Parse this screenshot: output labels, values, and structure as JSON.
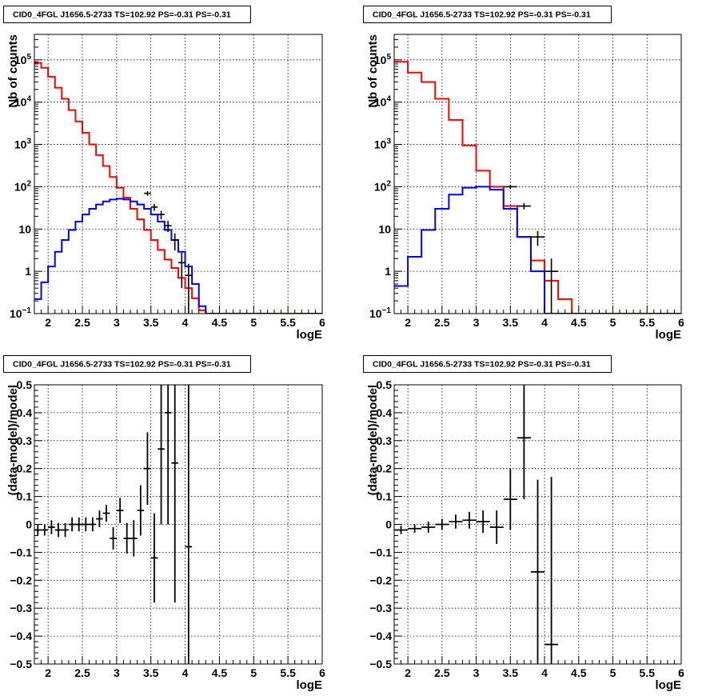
{
  "chart_data": [
    {
      "type": "histogram",
      "title": "CID0_4FGL J1656.5-2733 TS=102.92 PS=-0.31 PS=-0.31",
      "xlabel": "logE",
      "ylabel": "Nb of counts",
      "log_y": true,
      "grid": true,
      "xlim": [
        1.8,
        6.0
      ],
      "ylim": [
        0.1,
        400000
      ],
      "x_ticks": [
        "2",
        "2.5",
        "3",
        "3.5",
        "4",
        "4.5",
        "5",
        "5.5",
        "6"
      ],
      "y_ticks": [
        {
          "base": "10",
          "exp": "-1",
          "value": 0.1
        },
        {
          "base": "1",
          "exp": "",
          "value": 1
        },
        {
          "base": "10",
          "exp": "",
          "value": 10
        },
        {
          "base": "10",
          "exp": "2",
          "value": 100
        },
        {
          "base": "10",
          "exp": "3",
          "value": 1000
        },
        {
          "base": "10",
          "exp": "4",
          "value": 10000
        },
        {
          "base": "10",
          "exp": "5",
          "value": 100000
        }
      ],
      "bin_edges": [
        1.8,
        1.9,
        2.0,
        2.1,
        2.2,
        2.3,
        2.4,
        2.5,
        2.6,
        2.7,
        2.8,
        2.9,
        3.0,
        3.1,
        3.2,
        3.3,
        3.4,
        3.5,
        3.6,
        3.7,
        3.8,
        3.9,
        4.0,
        4.1,
        4.2,
        4.3,
        4.4,
        4.5,
        4.6,
        4.7,
        4.8,
        4.9,
        5.0,
        5.1,
        5.2,
        5.3,
        5.4,
        5.5,
        5.6,
        5.7,
        5.8,
        5.9,
        6.0
      ],
      "series": [
        {
          "role": "total_model",
          "color": "#ff0000",
          "values": [
            85000,
            65000,
            40000,
            22000,
            12000,
            6500,
            3500,
            1900,
            1000,
            560,
            310,
            170,
            95,
            55,
            30,
            17,
            9.5,
            5.5,
            3.2,
            1.9,
            1.2,
            0.7,
            0.4,
            0.23,
            0.12,
            0.1,
            0.1,
            0.1,
            0.1,
            0.1,
            0.1,
            0.1,
            0.1,
            0.1,
            0.1,
            0.1,
            0.1,
            0.1,
            0.1,
            0.1,
            0.1,
            0.1
          ]
        },
        {
          "role": "source_model",
          "color": "#0000ff",
          "values": [
            0.22,
            0.55,
            1.3,
            2.9,
            5.5,
            9.5,
            15,
            22,
            30,
            38,
            45,
            50,
            52,
            50,
            45,
            38,
            30,
            22,
            15,
            9.5,
            5.5,
            2.9,
            1.3,
            0.5,
            0.15,
            0.1,
            0.1,
            0.1,
            0.1,
            0.1,
            0.1,
            0.1,
            0.1,
            0.1,
            0.1,
            0.1,
            0.1,
            0.1,
            0.1,
            0.1,
            0.1,
            0.1
          ]
        },
        {
          "role": "data",
          "color": "#000000",
          "points": [
            {
              "x": 3.45,
              "y": 70,
              "err": 9
            },
            {
              "x": 3.55,
              "y": 33,
              "err": 6
            },
            {
              "x": 3.65,
              "y": 22,
              "err": 5
            },
            {
              "x": 3.75,
              "y": 12,
              "err": 3.5
            },
            {
              "x": 3.85,
              "y": 5.5,
              "err": 2.4
            },
            {
              "x": 3.95,
              "y": 1.6,
              "err": 1.2
            },
            {
              "x": 4.05,
              "y": 0.8,
              "err": 0.7
            }
          ]
        }
      ]
    },
    {
      "type": "histogram",
      "title": "CID0_4FGL J1656.5-2733 TS=102.92 PS=-0.31 PS=-0.31",
      "xlabel": "logE",
      "ylabel": "Nb of counts",
      "log_y": true,
      "grid": true,
      "xlim": [
        1.8,
        6.0
      ],
      "ylim": [
        0.1,
        400000
      ],
      "x_ticks": [
        "2",
        "2.5",
        "3",
        "3.5",
        "4",
        "4.5",
        "5",
        "5.5",
        "6"
      ],
      "y_ticks": [
        {
          "base": "10",
          "exp": "-1",
          "value": 0.1
        },
        {
          "base": "1",
          "exp": "",
          "value": 1
        },
        {
          "base": "10",
          "exp": "",
          "value": 10
        },
        {
          "base": "10",
          "exp": "2",
          "value": 100
        },
        {
          "base": "10",
          "exp": "3",
          "value": 1000
        },
        {
          "base": "10",
          "exp": "4",
          "value": 10000
        },
        {
          "base": "10",
          "exp": "5",
          "value": 100000
        }
      ],
      "bin_edges": [
        1.8,
        2.0,
        2.2,
        2.4,
        2.6,
        2.8,
        3.0,
        3.2,
        3.4,
        3.6,
        3.8,
        4.0,
        4.2,
        4.4,
        4.6,
        4.8,
        5.0,
        5.2,
        5.4,
        5.6,
        5.8,
        6.0
      ],
      "series": [
        {
          "role": "total_model",
          "color": "#ff0000",
          "values": [
            90000,
            50000,
            30000,
            12000,
            3800,
            950,
            240,
            100,
            35,
            6.5,
            1.8,
            0.6,
            0.22,
            0.1,
            0.1,
            0.1,
            0.1,
            0.1,
            0.1,
            0.1,
            0.1
          ]
        },
        {
          "role": "source_model",
          "color": "#0000ff",
          "values": [
            0.45,
            2.2,
            9.5,
            30,
            65,
            95,
            100,
            85,
            30,
            6.5,
            1.0,
            0.1,
            0.1,
            0.1,
            0.1,
            0.1,
            0.1,
            0.1,
            0.1,
            0.1,
            0.1
          ]
        },
        {
          "role": "data",
          "color": "#000000",
          "points": [
            {
              "x": 3.5,
              "y": 100,
              "err": 10
            },
            {
              "x": 3.7,
              "y": 35,
              "err": 6
            },
            {
              "x": 3.9,
              "y": 6.5,
              "err": 2.5
            },
            {
              "x": 4.1,
              "y": 1.0,
              "err": 1.0
            }
          ]
        }
      ]
    },
    {
      "type": "scatter",
      "title": "CID0_4FGL J1656.5-2733 TS=102.92 PS=-0.31 PS=-0.31",
      "xlabel": "logE",
      "ylabel": "(data-model)/model",
      "grid": true,
      "xlim": [
        1.8,
        6.0
      ],
      "ylim": [
        -0.5,
        0.5
      ],
      "x_ticks": [
        "2",
        "2.5",
        "3",
        "3.5",
        "4",
        "4.5",
        "5",
        "5.5",
        "6"
      ],
      "y_ticks": [
        "-0.5",
        "-0.4",
        "-0.3",
        "-0.2",
        "-0.1",
        "0",
        "0.1",
        "0.2",
        "0.3",
        "0.4",
        "0.5"
      ],
      "bin_halfwidth": 0.05,
      "points": [
        {
          "x": 1.85,
          "y": -0.02,
          "err": 0.02
        },
        {
          "x": 1.95,
          "y": -0.02,
          "err": 0.02
        },
        {
          "x": 2.05,
          "y": -0.01,
          "err": 0.025
        },
        {
          "x": 2.15,
          "y": -0.02,
          "err": 0.025
        },
        {
          "x": 2.25,
          "y": -0.02,
          "err": 0.025
        },
        {
          "x": 2.35,
          "y": 0.0,
          "err": 0.025
        },
        {
          "x": 2.45,
          "y": 0.0,
          "err": 0.025
        },
        {
          "x": 2.55,
          "y": 0.0,
          "err": 0.025
        },
        {
          "x": 2.65,
          "y": 0.0,
          "err": 0.025
        },
        {
          "x": 2.75,
          "y": 0.02,
          "err": 0.03
        },
        {
          "x": 2.85,
          "y": 0.04,
          "err": 0.03
        },
        {
          "x": 2.95,
          "y": -0.05,
          "err": 0.04
        },
        {
          "x": 3.05,
          "y": 0.05,
          "err": 0.045
        },
        {
          "x": 3.15,
          "y": -0.05,
          "err": 0.055
        },
        {
          "x": 3.25,
          "y": -0.05,
          "err": 0.065
        },
        {
          "x": 3.35,
          "y": 0.05,
          "err": 0.09
        },
        {
          "x": 3.45,
          "y": 0.2,
          "err": 0.13
        },
        {
          "x": 3.55,
          "y": -0.12,
          "err": 0.16
        },
        {
          "x": 3.65,
          "y": 0.27,
          "err": 0.27
        },
        {
          "x": 3.75,
          "y": 0.4,
          "err": 0.4
        },
        {
          "x": 3.85,
          "y": 0.22,
          "err": 0.5
        },
        {
          "x": 4.05,
          "y": -0.08,
          "err": 1.0
        }
      ]
    },
    {
      "type": "scatter",
      "title": "CID0_4FGL J1656.5-2733 TS=102.92 PS=-0.31 PS=-0.31",
      "xlabel": "logE",
      "ylabel": "(data-model)/model",
      "grid": true,
      "xlim": [
        1.8,
        6.0
      ],
      "ylim": [
        -0.5,
        0.5
      ],
      "x_ticks": [
        "2",
        "2.5",
        "3",
        "3.5",
        "4",
        "4.5",
        "5",
        "5.5",
        "6"
      ],
      "y_ticks": [
        "-0.5",
        "-0.4",
        "-0.3",
        "-0.2",
        "-0.1",
        "0",
        "0.1",
        "0.2",
        "0.3",
        "0.4",
        "0.5"
      ],
      "bin_halfwidth": 0.1,
      "points": [
        {
          "x": 1.9,
          "y": -0.02,
          "err": 0.015
        },
        {
          "x": 2.1,
          "y": -0.015,
          "err": 0.015
        },
        {
          "x": 2.3,
          "y": -0.01,
          "err": 0.02
        },
        {
          "x": 2.5,
          "y": 0.0,
          "err": 0.02
        },
        {
          "x": 2.7,
          "y": 0.01,
          "err": 0.025
        },
        {
          "x": 2.9,
          "y": 0.015,
          "err": 0.03
        },
        {
          "x": 3.1,
          "y": 0.01,
          "err": 0.04
        },
        {
          "x": 3.3,
          "y": -0.01,
          "err": 0.06
        },
        {
          "x": 3.5,
          "y": 0.09,
          "err": 0.11
        },
        {
          "x": 3.7,
          "y": 0.31,
          "err": 0.22
        },
        {
          "x": 3.9,
          "y": -0.17,
          "err": 0.33
        },
        {
          "x": 4.1,
          "y": -0.43,
          "err": 0.6
        }
      ]
    }
  ]
}
